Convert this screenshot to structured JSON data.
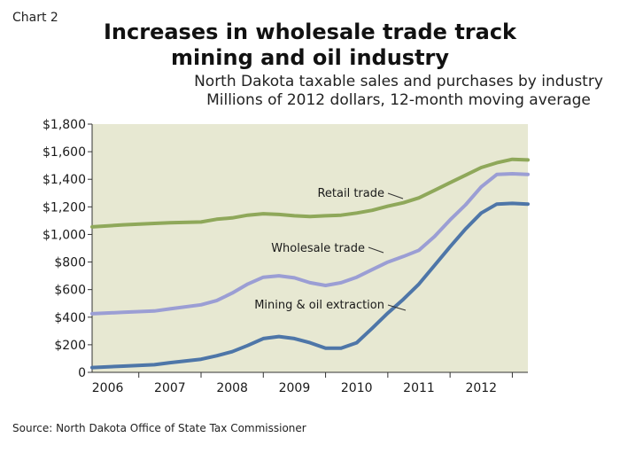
{
  "chart_number": "Chart 2",
  "title_line1": "Increases in wholesale trade track",
  "title_line2": "mining and oil industry",
  "subtitle_line1": "North Dakota taxable sales and purchases by industry",
  "subtitle_line2": "Millions of 2012 dollars, 12-month moving average",
  "source": "Source: North Dakota Office of State Tax Commissioner",
  "colors": {
    "plot_bg": "#e7e8d2",
    "retail": "#8fa85a",
    "wholesale": "#9b9ed4",
    "mining": "#4e76a8"
  },
  "chart_data": {
    "type": "line",
    "title": "Increases in wholesale trade track mining and oil industry",
    "ylabel": "Millions of 2012 dollars, 12-month moving average",
    "ylim": [
      0,
      1800
    ],
    "xlim": [
      2005.75,
      2012.75
    ],
    "y_ticks": [
      "0",
      "$200",
      "$400",
      "$600",
      "$800",
      "$1,000",
      "$1,200",
      "$1,400",
      "$1,600",
      "$1,800"
    ],
    "x_ticks": [
      "2006",
      "2007",
      "2008",
      "2009",
      "2010",
      "2011",
      "2012"
    ],
    "grid": false,
    "series": [
      {
        "name": "Retail trade",
        "x": [
          2005.75,
          2006.25,
          2006.75,
          2007.0,
          2007.5,
          2007.75,
          2008.0,
          2008.25,
          2008.5,
          2008.75,
          2009.0,
          2009.25,
          2009.5,
          2009.75,
          2010.0,
          2010.25,
          2010.5,
          2010.75,
          2011.0,
          2011.25,
          2011.5,
          2011.75,
          2012.0,
          2012.25,
          2012.5,
          2012.75
        ],
        "values": [
          1055,
          1070,
          1080,
          1085,
          1090,
          1110,
          1120,
          1140,
          1150,
          1145,
          1135,
          1130,
          1135,
          1140,
          1155,
          1175,
          1205,
          1230,
          1265,
          1320,
          1375,
          1430,
          1485,
          1520,
          1545,
          1540
        ]
      },
      {
        "name": "Wholesale trade",
        "x": [
          2005.75,
          2006.25,
          2006.75,
          2007.0,
          2007.5,
          2007.75,
          2008.0,
          2008.25,
          2008.5,
          2008.75,
          2009.0,
          2009.25,
          2009.5,
          2009.75,
          2010.0,
          2010.25,
          2010.5,
          2010.75,
          2011.0,
          2011.25,
          2011.5,
          2011.75,
          2012.0,
          2012.25,
          2012.5,
          2012.75
        ],
        "values": [
          425,
          435,
          445,
          460,
          490,
          520,
          575,
          640,
          690,
          700,
          685,
          650,
          630,
          650,
          690,
          745,
          800,
          840,
          885,
          985,
          1105,
          1215,
          1345,
          1435,
          1440,
          1435
        ]
      },
      {
        "name": "Mining & oil extraction",
        "x": [
          2005.75,
          2006.25,
          2006.75,
          2007.0,
          2007.5,
          2007.75,
          2008.0,
          2008.25,
          2008.5,
          2008.75,
          2009.0,
          2009.25,
          2009.5,
          2009.75,
          2010.0,
          2010.25,
          2010.5,
          2010.75,
          2011.0,
          2011.25,
          2011.5,
          2011.75,
          2012.0,
          2012.25,
          2012.5,
          2012.75
        ],
        "values": [
          35,
          45,
          55,
          70,
          95,
          120,
          150,
          195,
          245,
          260,
          245,
          215,
          175,
          175,
          215,
          320,
          430,
          530,
          640,
          775,
          910,
          1040,
          1155,
          1220,
          1225,
          1220
        ]
      }
    ]
  }
}
